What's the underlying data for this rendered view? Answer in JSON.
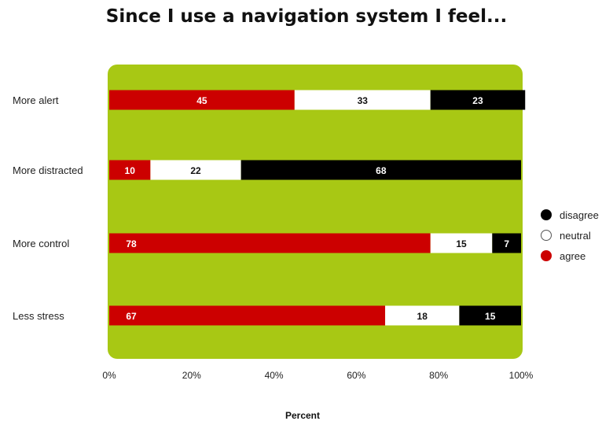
{
  "chart_data": {
    "type": "bar",
    "orientation": "horizontal",
    "stacked": true,
    "title": "Since I use a navigation system I feel...",
    "xlabel": "Percent",
    "ylabel": "",
    "xlim": [
      0,
      100
    ],
    "x_ticks": [
      "0%",
      "20%",
      "40%",
      "60%",
      "80%",
      "100%"
    ],
    "categories": [
      "More alert",
      "More distracted",
      "More control",
      "Less stress"
    ],
    "series": [
      {
        "name": "agree",
        "color": "#cc0000",
        "values": [
          45,
          10,
          78,
          67
        ]
      },
      {
        "name": "neutral",
        "color": "#ffffff",
        "values": [
          33,
          22,
          15,
          18
        ]
      },
      {
        "name": "disagree",
        "color": "#000000",
        "values": [
          23,
          68,
          7,
          15
        ]
      }
    ],
    "legend_order": [
      "disagree",
      "neutral",
      "agree"
    ],
    "legend_position": "right",
    "plot_background": "#a8c814",
    "grid": false
  }
}
